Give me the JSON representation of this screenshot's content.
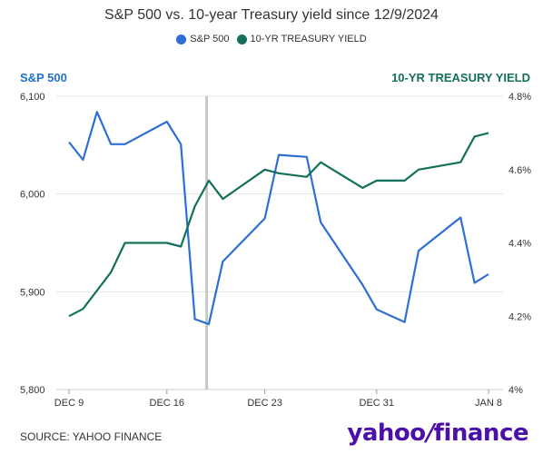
{
  "title": "S&P 500 vs. 10-year Treasury yield since 12/9/2024",
  "source": "SOURCE: YAHOO FINANCE",
  "logo_text": "yahoo!finance",
  "colors": {
    "sp500": "#2d6fd4",
    "treasury": "#137059",
    "marker": "#c8c8c8"
  },
  "chart_data": {
    "type": "line",
    "title": "S&P 500 vs. 10-year Treasury yield since 12/9/2024",
    "left_axis_label": "S&P 500",
    "right_axis_label": "10-YR TREASURY YIELD",
    "left_ylim": [
      5800,
      6100
    ],
    "right_ylim": [
      4.0,
      4.8
    ],
    "left_ticks": [
      "5,800",
      "5,900",
      "6,000",
      "6,100"
    ],
    "right_ticks": [
      "4%",
      "4.2%",
      "4.4%",
      "4.6%",
      "4.8%"
    ],
    "x_ticks": [
      "DEC 9",
      "DEC 16",
      "DEC 23",
      "DEC 31",
      "JAN 8"
    ],
    "legend": [
      {
        "name": "S&P 500",
        "color": "#2d6fd4"
      },
      {
        "name": "10-YR TREASURY YIELD",
        "color": "#137059"
      }
    ],
    "x_dates": [
      "2024-12-09",
      "2024-12-10",
      "2024-12-11",
      "2024-12-12",
      "2024-12-13",
      "2024-12-16",
      "2024-12-17",
      "2024-12-18",
      "2024-12-19",
      "2024-12-20",
      "2024-12-23",
      "2024-12-24",
      "2024-12-26",
      "2024-12-27",
      "2024-12-30",
      "2024-12-31",
      "2025-01-02",
      "2025-01-03",
      "2025-01-06",
      "2025-01-07",
      "2025-01-08"
    ],
    "vertical_marker_date": "2024-12-18",
    "series": [
      {
        "name": "S&P 500",
        "axis": "left",
        "values": [
          6053,
          6035,
          6084,
          6051,
          6051,
          6074,
          6051,
          5872,
          5867,
          5931,
          5975,
          6040,
          6038,
          5971,
          5907,
          5882,
          5869,
          5942,
          5976,
          5909,
          5918
        ]
      },
      {
        "name": "10-YR TREASURY YIELD",
        "axis": "right",
        "values": [
          4.2,
          4.22,
          4.27,
          4.32,
          4.4,
          4.4,
          4.39,
          4.5,
          4.57,
          4.52,
          4.6,
          4.59,
          4.58,
          4.62,
          4.55,
          4.57,
          4.57,
          4.6,
          4.62,
          4.69,
          4.7
        ]
      }
    ]
  }
}
